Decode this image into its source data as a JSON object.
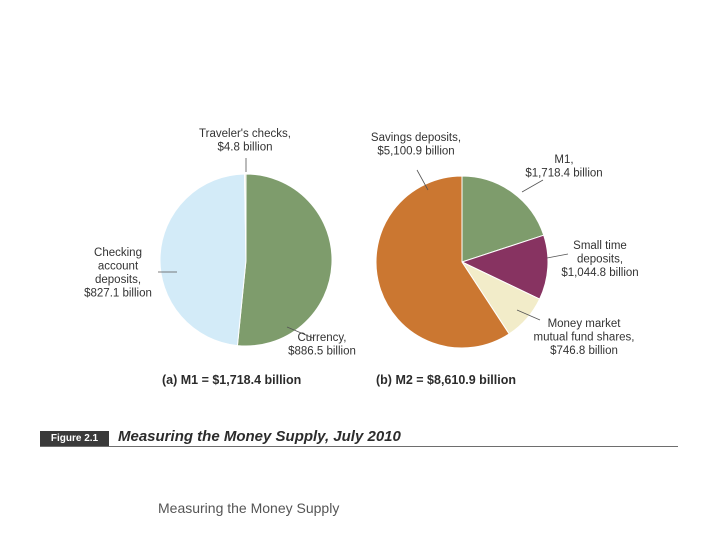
{
  "chart_data": [
    {
      "type": "pie",
      "panel_label": "(a)",
      "caption": "M1 = $1,718.4 billion",
      "slices": [
        {
          "label_lines": [
            "Currency,",
            "$886.5 billion"
          ],
          "value": 886.5,
          "color": "#7e9c6c"
        },
        {
          "label_lines": [
            "Checking",
            "account",
            "deposits,",
            "$827.1 billion"
          ],
          "value": 827.1,
          "color": "#d3ebf8"
        },
        {
          "label_lines": [
            "Traveler's checks,",
            "$4.8 billion"
          ],
          "value": 4.8,
          "color": "#e9e5d0"
        }
      ]
    },
    {
      "type": "pie",
      "panel_label": "(b)",
      "caption": "M2 = $8,610.9 billion",
      "slices": [
        {
          "label_lines": [
            "M1,",
            "$1,718.4 billion"
          ],
          "value": 1718.4,
          "color": "#7e9c6c"
        },
        {
          "label_lines": [
            "Small time",
            "deposits,",
            "$1,044.8 billion"
          ],
          "value": 1044.8,
          "color": "#873361"
        },
        {
          "label_lines": [
            "Money market",
            "mutual fund shares,",
            "$746.8 billion"
          ],
          "value": 746.8,
          "color": "#f2ecc9"
        },
        {
          "label_lines": [
            "Savings deposits,",
            "$5,100.9 billion"
          ],
          "value": 5100.9,
          "color": "#cb7731"
        }
      ]
    }
  ],
  "figure": {
    "badge": "Figure 2.1",
    "title": "Measuring the Money Supply, July 2010"
  },
  "footer": "Measuring the Money Supply"
}
